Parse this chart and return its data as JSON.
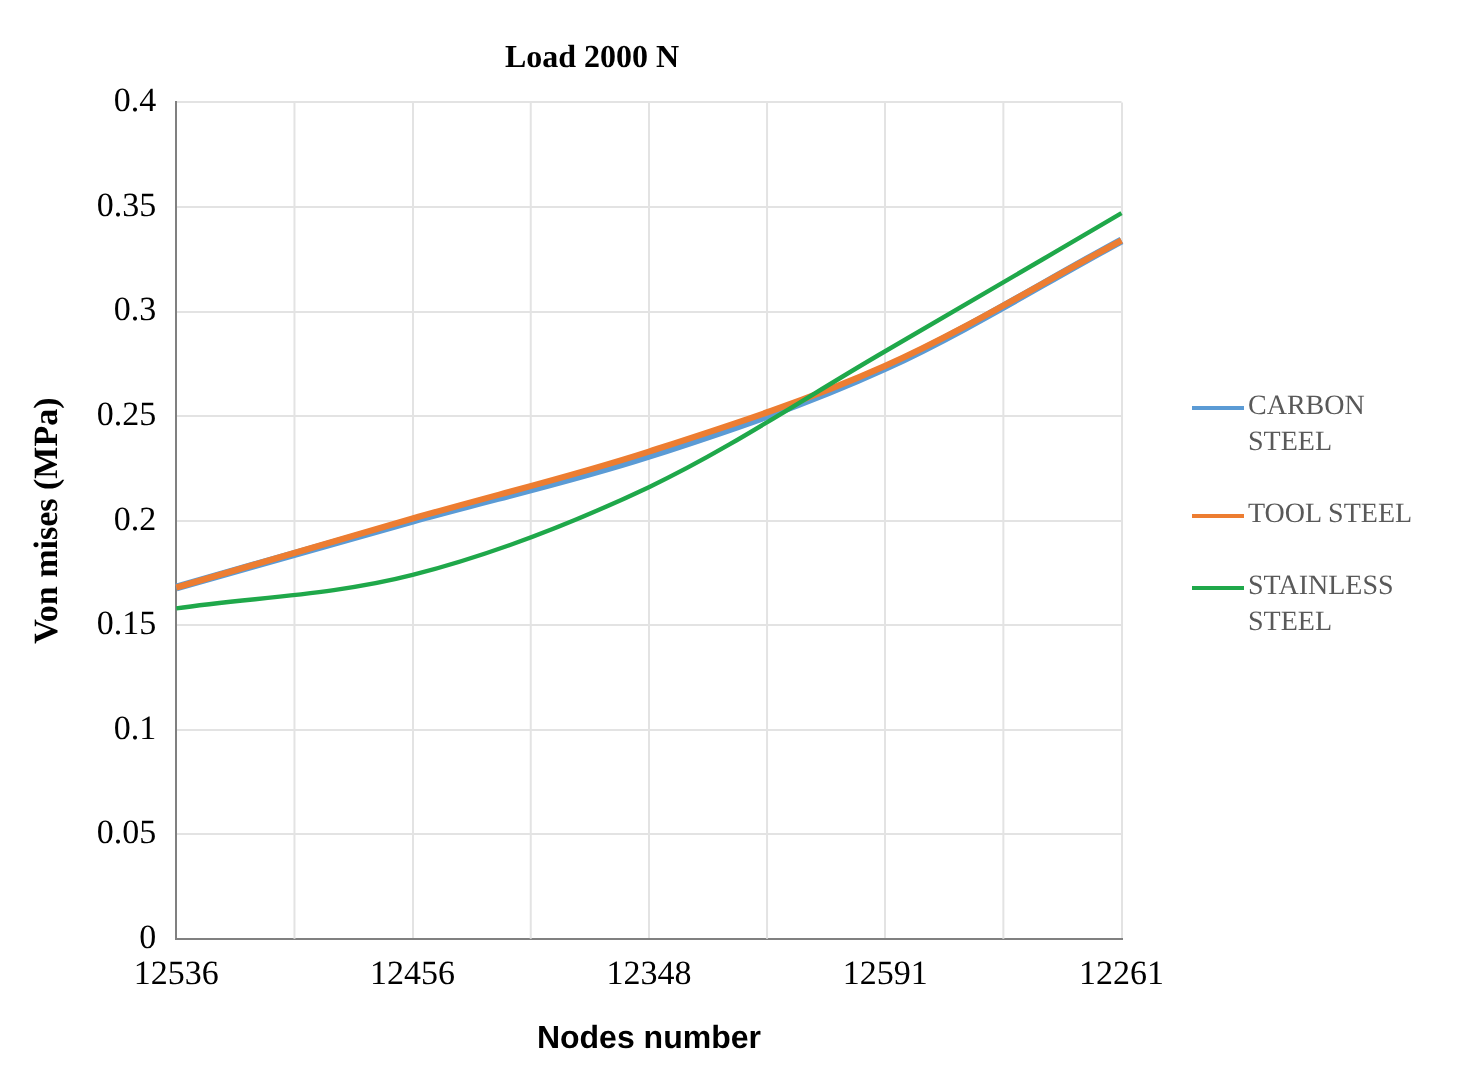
{
  "chart_data": {
    "type": "line",
    "title": "Load 2000 N",
    "xlabel": "Nodes number",
    "ylabel": "Von mises (MPa)",
    "categories": [
      "12536",
      "12456",
      "12348",
      "12591",
      "12261"
    ],
    "series": [
      {
        "name": "CARBON STEEL",
        "color": "#5b9bd5",
        "values": [
          0.168,
          0.2,
          0.231,
          0.273,
          0.334
        ]
      },
      {
        "name": "TOOL STEEL",
        "color": "#ed7d31",
        "values": [
          0.168,
          0.201,
          0.233,
          0.274,
          0.334
        ]
      },
      {
        "name": "STAINLESS STEEL",
        "color": "#1fa84a",
        "values": [
          0.158,
          0.174,
          0.216,
          0.281,
          0.347
        ]
      }
    ],
    "ylim": [
      0,
      0.4
    ],
    "yticks": [
      0,
      0.05,
      0.1,
      0.15,
      0.2,
      0.25,
      0.3,
      0.35,
      0.4
    ],
    "grid": true,
    "legend": "right",
    "marker": "none",
    "line_style": "solid"
  }
}
